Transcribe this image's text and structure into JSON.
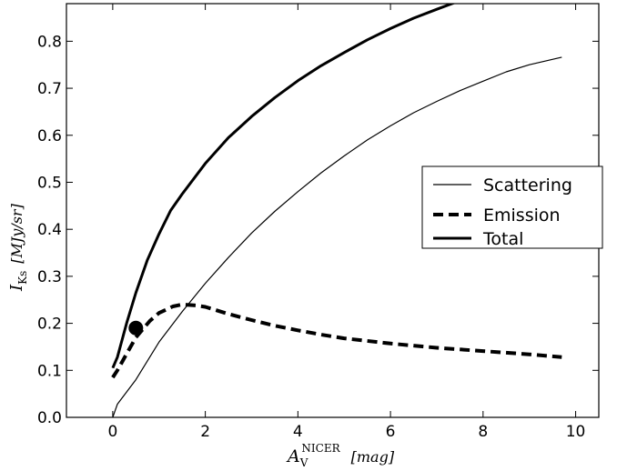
{
  "chart_data": {
    "type": "line",
    "xlim": [
      -1,
      10.5
    ],
    "ylim": [
      0.0,
      0.88
    ],
    "xticks": [
      0,
      2,
      4,
      6,
      8,
      10
    ],
    "xtick_labels": [
      "0",
      "2",
      "4",
      "6",
      "8",
      "10"
    ],
    "yticks": [
      0.0,
      0.1,
      0.2,
      0.3,
      0.4,
      0.5,
      0.6,
      0.7,
      0.8
    ],
    "ytick_labels": [
      "0.0",
      "0.1",
      "0.2",
      "0.3",
      "0.4",
      "0.5",
      "0.6",
      "0.7",
      "0.8"
    ],
    "xlabel": {
      "main": "A",
      "sub": "V",
      "sup": "NICER",
      "unit": "[mag]"
    },
    "ylabel": {
      "main": "I",
      "sub": "Ks",
      "unit": "[MJy/sr]"
    },
    "grid": false,
    "legend_position": "center-right",
    "series": [
      {
        "name": "Scattering",
        "style": "thin-solid",
        "color": "#000000",
        "x": [
          0.0,
          0.1,
          0.5,
          1.0,
          1.5,
          2.0,
          2.5,
          3.0,
          3.5,
          4.0,
          4.5,
          5.0,
          5.5,
          6.0,
          6.5,
          7.0,
          7.5,
          8.0,
          8.5,
          9.0,
          9.7
        ],
        "y": [
          0.0,
          0.028,
          0.08,
          0.16,
          0.225,
          0.285,
          0.34,
          0.392,
          0.438,
          0.48,
          0.52,
          0.556,
          0.59,
          0.62,
          0.648,
          0.672,
          0.695,
          0.715,
          0.735,
          0.75,
          0.766
        ]
      },
      {
        "name": "Emission",
        "style": "thick-dashed",
        "color": "#000000",
        "x": [
          0.0,
          0.1,
          0.3,
          0.5,
          0.8,
          1.0,
          1.3,
          1.5,
          1.8,
          2.0,
          2.5,
          3.0,
          3.5,
          4.0,
          4.5,
          5.0,
          6.0,
          7.0,
          8.0,
          9.0,
          9.7
        ],
        "y": [
          0.085,
          0.1,
          0.135,
          0.17,
          0.205,
          0.222,
          0.236,
          0.24,
          0.238,
          0.235,
          0.22,
          0.207,
          0.195,
          0.185,
          0.176,
          0.168,
          0.157,
          0.148,
          0.141,
          0.134,
          0.128
        ]
      },
      {
        "name": "Total",
        "style": "thick-solid",
        "color": "#000000",
        "x": [
          0.0,
          0.1,
          0.3,
          0.5,
          0.75,
          1.0,
          1.25,
          1.5,
          2.0,
          2.5,
          3.0,
          3.5,
          4.0,
          4.5,
          5.0,
          5.5,
          6.0,
          6.5,
          7.0,
          7.6
        ],
        "y": [
          0.105,
          0.128,
          0.2,
          0.265,
          0.335,
          0.39,
          0.44,
          0.475,
          0.54,
          0.595,
          0.64,
          0.68,
          0.716,
          0.748,
          0.776,
          0.803,
          0.827,
          0.849,
          0.868,
          0.89
        ]
      }
    ],
    "markers": [
      {
        "x": 0.5,
        "y": 0.19,
        "shape": "filled-circle",
        "color": "#000000"
      }
    ]
  }
}
